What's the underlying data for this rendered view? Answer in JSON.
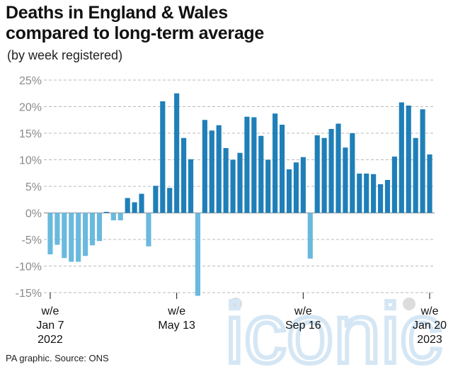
{
  "title": "Deaths in England & Wales\ncompared to long-term average",
  "subtitle": "(by week registered)",
  "source": "PA graphic. Source: ONS",
  "watermark": "iconic",
  "colors": {
    "pos_2022": "#1f7fb8",
    "neg_2022": "#6ab9de",
    "pos_2023": "#1f7fb8"
  },
  "chart_data": {
    "type": "bar",
    "title": "Deaths in England & Wales compared to long-term average",
    "subtitle": "(by week registered)",
    "ylabel": "",
    "xlabel": "",
    "ylim": [
      -17,
      25
    ],
    "yticks": [
      25,
      20,
      15,
      10,
      5,
      0,
      -5,
      -10,
      -15
    ],
    "ytick_labels": [
      "25%",
      "20%",
      "15%",
      "10%",
      "5%",
      "0%",
      "-5%",
      "-10%",
      "-15%"
    ],
    "grid": true,
    "unit": "%",
    "x_tick_labels": [
      {
        "index": 0,
        "lines": [
          "w/e",
          "Jan 7",
          "2022"
        ]
      },
      {
        "index": 18,
        "lines": [
          "w/e",
          "May 13"
        ]
      },
      {
        "index": 36,
        "lines": [
          "w/e",
          "Sep 16"
        ]
      },
      {
        "index": 54,
        "lines": [
          "w/e",
          "Jan 20",
          "2023"
        ]
      }
    ],
    "values": [
      -7.8,
      -6.0,
      -8.5,
      -9.2,
      -9.2,
      -8.1,
      -6.1,
      -5.3,
      0.2,
      -1.4,
      -1.4,
      2.8,
      2.0,
      3.6,
      -6.3,
      5.1,
      21.0,
      4.7,
      22.5,
      14.1,
      10.1,
      -15.6,
      17.5,
      15.5,
      16.5,
      12.2,
      10.0,
      11.3,
      18.1,
      18.0,
      14.5,
      10.0,
      18.7,
      16.6,
      8.2,
      9.5,
      10.5,
      -8.6,
      14.6,
      14.1,
      15.8,
      16.8,
      12.3,
      15.0,
      7.4,
      7.4,
      7.3,
      5.4,
      6.2,
      10.6,
      20.8,
      20.2,
      14.1,
      19.5,
      11.0
    ]
  }
}
